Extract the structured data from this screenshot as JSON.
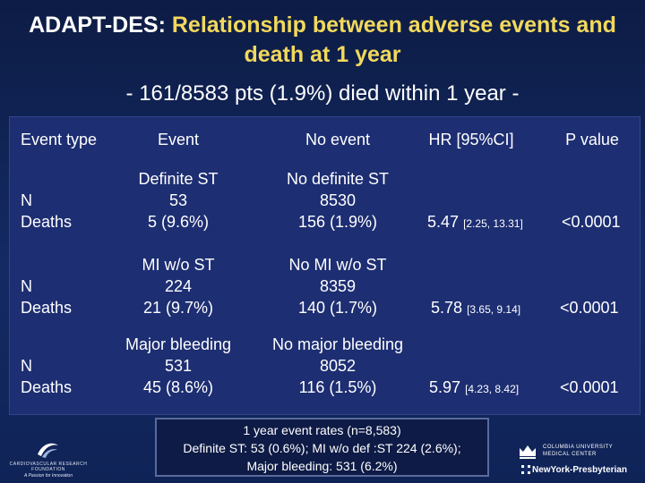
{
  "title": {
    "lead": "ADAPT-DES:",
    "rest": "Relationship between adverse events and death at 1 year"
  },
  "subtitle": "- 161/8583 pts (1.9%) died within 1 year -",
  "table": {
    "headers": {
      "event_type": "Event type",
      "event": "Event",
      "no_event": "No event",
      "hr": "HR [95%CI]",
      "p": "P value"
    },
    "rows": [
      {
        "label_n": "N",
        "label_deaths": "Deaths",
        "event_name": "Definite ST",
        "event_n": "53",
        "event_deaths": "5 (9.6%)",
        "no_event_name": "No definite ST",
        "no_event_n": "8530",
        "no_event_deaths": "156 (1.9%)",
        "hr": "5.47",
        "ci": "[2.25, 13.31]",
        "p": "<0.0001"
      },
      {
        "label_n": "N",
        "label_deaths": "Deaths",
        "event_name": "MI w/o ST",
        "event_n": "224",
        "event_deaths": "21 (9.7%)",
        "no_event_name": "No MI w/o ST",
        "no_event_n": "8359",
        "no_event_deaths": "140 (1.7%)",
        "hr": "5.78",
        "ci": "[3.65, 9.14]",
        "p": "<0.0001"
      },
      {
        "label_n": "N",
        "label_deaths": "Deaths",
        "event_name": "Major bleeding",
        "event_n": "531",
        "event_deaths": "45 (8.6%)",
        "no_event_name": "No major bleeding",
        "no_event_n": "8052",
        "no_event_deaths": "116 (1.5%)",
        "hr": "5.97",
        "ci": "[4.23, 8.42]",
        "p": "<0.0001"
      }
    ]
  },
  "footnote": {
    "line1": "1 year event rates (n=8,583)",
    "line2": "Definite ST: 53 (0.6%); MI w/o def :ST 224 (2.6%);",
    "line3": "Major bleeding: 531 (6.2%)"
  },
  "logos": {
    "left_line1": "CARDIOVASCULAR RESEARCH FOUNDATION",
    "left_line2": "A Passion for Innovation",
    "right_line1": "COLUMBIA UNIVERSITY",
    "right_line2": "MEDICAL CENTER",
    "right_line3": "NewYork-Presbyterian"
  },
  "colors": {
    "background": "#132a63",
    "table_panel": "#1d2e72",
    "title_accent": "#f2d95c"
  }
}
